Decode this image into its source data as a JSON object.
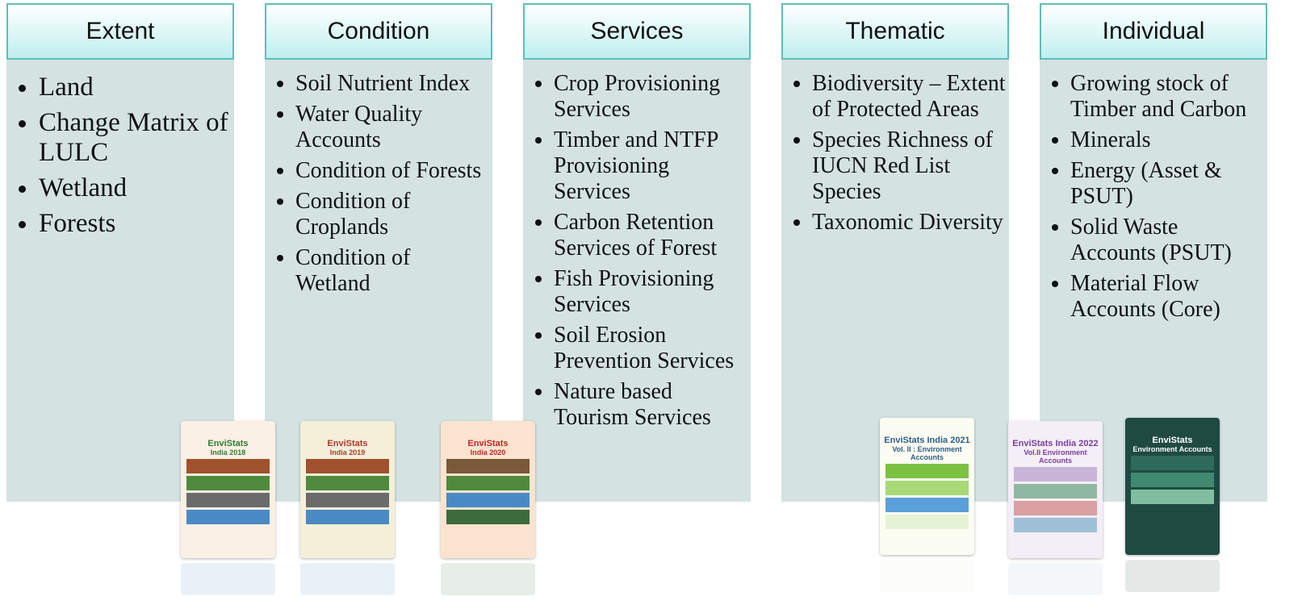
{
  "columns": [
    {
      "title": "Extent",
      "items": [
        "Land",
        "Change Matrix of LULC",
        "Wetland",
        "Forests"
      ]
    },
    {
      "title": "Condition",
      "items": [
        "Soil Nutrient Index",
        "Water Quality Accounts",
        "Condition of Forests",
        "Condition of Croplands",
        "Condition of Wetland"
      ]
    },
    {
      "title": "Services",
      "items": [
        "Crop Provisioning Services",
        "Timber and NTFP Provisioning Services",
        "Carbon Retention Services of Forest",
        "Fish Provisioning Services",
        "Soil Erosion Prevention Services",
        "Nature based Tourism Services"
      ]
    },
    {
      "title": "Thematic",
      "items": [
        "Biodiversity – Extent of Protected Areas",
        "Species Richness of IUCN Red List Species",
        "Taxonomic Diversity"
      ]
    },
    {
      "title": "Individual",
      "items": [
        "Growing stock of Timber and Carbon",
        "Minerals",
        "Energy (Asset & PSUT)",
        "Solid Waste Accounts (PSUT)",
        "Material Flow Accounts (Core)"
      ]
    }
  ],
  "covers": [
    {
      "title": "EnviStats",
      "edition": "India 2018"
    },
    {
      "title": "EnviStats",
      "edition": "India 2019"
    },
    {
      "title": "EnviStats",
      "edition": "India 2020"
    },
    {
      "title": "EnviStats India 2021",
      "edition": "Vol. II : Environment Accounts"
    },
    {
      "title": "EnviStats India 2022",
      "edition": "Vol.II Environment Accounts"
    },
    {
      "title": "EnviStats",
      "edition": "Environment Accounts"
    }
  ]
}
